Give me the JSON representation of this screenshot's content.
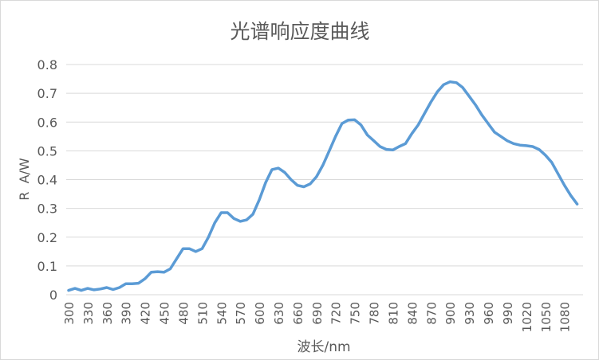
{
  "chart_data": {
    "type": "line",
    "title": "光谱响应度曲线",
    "xlabel": "波长/nm",
    "ylabel": "R  A/W",
    "ylim": [
      0,
      0.8
    ],
    "yticks": [
      "0",
      "0.1",
      "0.2",
      "0.3",
      "0.4",
      "0.5",
      "0.6",
      "0.7",
      "0.8"
    ],
    "grid": true,
    "legend": "none",
    "color": "#5b9bd5",
    "x": [
      300,
      310,
      320,
      330,
      340,
      350,
      360,
      370,
      380,
      390,
      400,
      410,
      420,
      430,
      440,
      450,
      460,
      470,
      480,
      490,
      500,
      510,
      520,
      530,
      540,
      550,
      560,
      570,
      580,
      590,
      600,
      610,
      620,
      630,
      640,
      650,
      660,
      670,
      680,
      690,
      700,
      710,
      720,
      730,
      740,
      750,
      760,
      770,
      780,
      790,
      800,
      810,
      820,
      830,
      840,
      850,
      860,
      870,
      880,
      890,
      900,
      910,
      920,
      930,
      940,
      950,
      960,
      970,
      980,
      990,
      1000,
      1010,
      1020,
      1030,
      1040,
      1050,
      1060,
      1070,
      1080,
      1090,
      1100
    ],
    "xtick_labels": [
      "300",
      "330",
      "360",
      "390",
      "420",
      "450",
      "480",
      "510",
      "540",
      "570",
      "600",
      "630",
      "660",
      "690",
      "720",
      "750",
      "780",
      "810",
      "840",
      "870",
      "900",
      "930",
      "960",
      "990",
      "1020",
      "1050",
      "1080"
    ],
    "values": [
      0.015,
      0.022,
      0.015,
      0.022,
      0.017,
      0.02,
      0.025,
      0.018,
      0.025,
      0.038,
      0.038,
      0.04,
      0.055,
      0.078,
      0.08,
      0.078,
      0.09,
      0.125,
      0.16,
      0.16,
      0.15,
      0.16,
      0.2,
      0.25,
      0.285,
      0.285,
      0.265,
      0.255,
      0.26,
      0.28,
      0.33,
      0.39,
      0.435,
      0.44,
      0.425,
      0.4,
      0.38,
      0.375,
      0.385,
      0.41,
      0.45,
      0.5,
      0.55,
      0.595,
      0.607,
      0.608,
      0.59,
      0.555,
      0.535,
      0.515,
      0.505,
      0.503,
      0.515,
      0.525,
      0.56,
      0.59,
      0.63,
      0.67,
      0.705,
      0.73,
      0.74,
      0.737,
      0.72,
      0.69,
      0.66,
      0.625,
      0.595,
      0.565,
      0.55,
      0.535,
      0.525,
      0.52,
      0.518,
      0.515,
      0.505,
      0.485,
      0.46,
      0.42,
      0.38,
      0.345,
      0.315
    ]
  }
}
